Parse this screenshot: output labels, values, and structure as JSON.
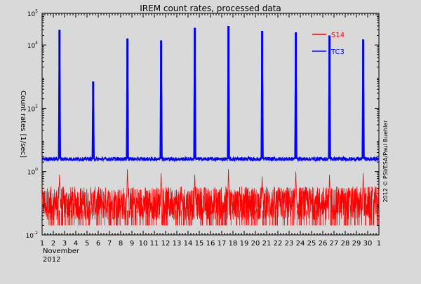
{
  "chart_data": {
    "type": "line",
    "title": "IREM count rates, processed data",
    "xlabel_lines": [
      "November",
      "2012"
    ],
    "ylabel": "Count rates [1/sec]",
    "credit": "2012 © PSI/ESA/Paul Buehler",
    "background_color": "#d9d9d9",
    "grid": false,
    "legend_position": "top-right",
    "x": {
      "unit": "day of November 2012",
      "range": [
        1,
        31
      ],
      "tick_labels": [
        "1",
        "2",
        "3",
        "4",
        "5",
        "6",
        "7",
        "8",
        "9",
        "10",
        "11",
        "12",
        "13",
        "14",
        "15",
        "16",
        "17",
        "18",
        "19",
        "20",
        "21",
        "22",
        "23",
        "24",
        "25",
        "26",
        "27",
        "28",
        "29",
        "30",
        "1"
      ]
    },
    "y": {
      "scale": "log",
      "range": [
        0.01,
        100000
      ],
      "tick_values": [
        0.01,
        1,
        100,
        10000,
        100000
      ],
      "tick_labels": [
        {
          "base": "10",
          "exp": "-2"
        },
        {
          "base": "10",
          "exp": "0"
        },
        {
          "base": "10",
          "exp": "2"
        },
        {
          "base": "10",
          "exp": "4"
        },
        {
          "base": "10",
          "exp": "5"
        }
      ]
    },
    "series": [
      {
        "name": "S14",
        "color": "#ff0000",
        "baseline": 0.1,
        "baseline_low": 0.02,
        "baseline_high": 0.3,
        "peaks": [
          {
            "day": 2.55,
            "value": 0.8
          },
          {
            "day": 8.6,
            "value": 1.2
          },
          {
            "day": 11.6,
            "value": 0.9
          },
          {
            "day": 14.6,
            "value": 0.8
          },
          {
            "day": 17.6,
            "value": 1.2
          },
          {
            "day": 20.6,
            "value": 0.7
          },
          {
            "day": 23.6,
            "value": 1.0
          },
          {
            "day": 26.6,
            "value": 0.8
          },
          {
            "day": 29.6,
            "value": 0.9
          }
        ]
      },
      {
        "name": "TC3",
        "color": "#0000ff",
        "baseline": 2.5,
        "peaks": [
          {
            "day": 2.55,
            "value": 30000
          },
          {
            "day": 5.55,
            "value": 700
          },
          {
            "day": 8.6,
            "value": 16000
          },
          {
            "day": 11.6,
            "value": 14000
          },
          {
            "day": 14.6,
            "value": 35000
          },
          {
            "day": 17.6,
            "value": 40000
          },
          {
            "day": 20.6,
            "value": 28000
          },
          {
            "day": 23.6,
            "value": 25000
          },
          {
            "day": 26.6,
            "value": 20000
          },
          {
            "day": 29.6,
            "value": 15000
          }
        ]
      }
    ]
  }
}
